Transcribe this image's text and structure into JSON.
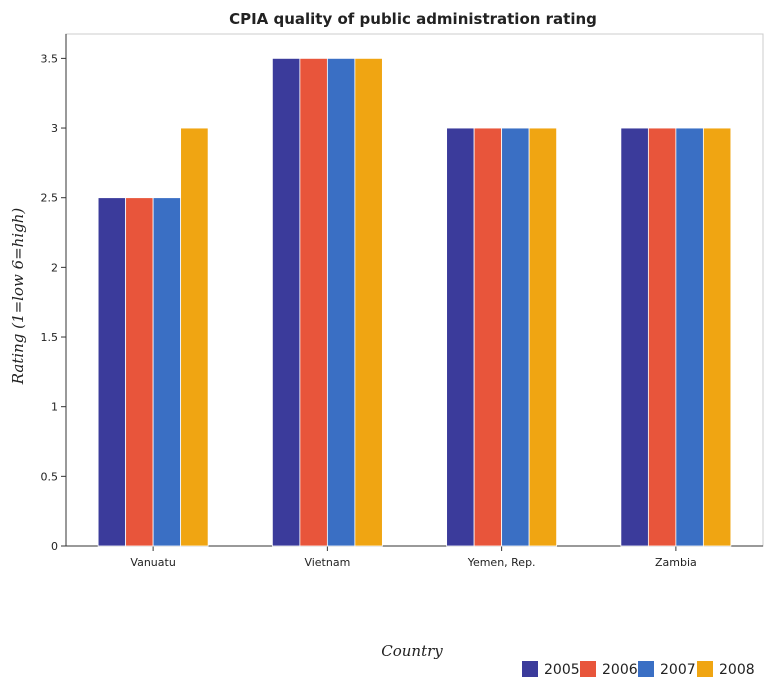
{
  "chart_data": {
    "type": "bar",
    "title": "CPIA quality of public administration rating",
    "xlabel": "Country",
    "ylabel": "Rating (1=low 6=high)",
    "categories": [
      "Vanuatu",
      "Vietnam",
      "Yemen, Rep.",
      "Zambia"
    ],
    "ylim": [
      0,
      3.675
    ],
    "yticks": [
      0,
      0.5,
      1,
      1.5,
      2,
      2.5,
      3,
      3.5
    ],
    "ytick_labels": [
      "0",
      "0.5",
      "1",
      "1.5",
      "2",
      "2.5",
      "3",
      "3.5"
    ],
    "grid": false,
    "legend_position": "bottom-right",
    "series": [
      {
        "name": "2005",
        "color": "#3b3b9b",
        "values": [
          2.5,
          3.5,
          3.0,
          3.0
        ]
      },
      {
        "name": "2006",
        "color": "#e8553b",
        "values": [
          2.5,
          3.5,
          3.0,
          3.0
        ]
      },
      {
        "name": "2007",
        "color": "#3a6fc4",
        "values": [
          2.5,
          3.5,
          3.0,
          3.0
        ]
      },
      {
        "name": "2008",
        "color": "#f0a512",
        "values": [
          3.0,
          3.5,
          3.0,
          3.0
        ]
      }
    ]
  }
}
